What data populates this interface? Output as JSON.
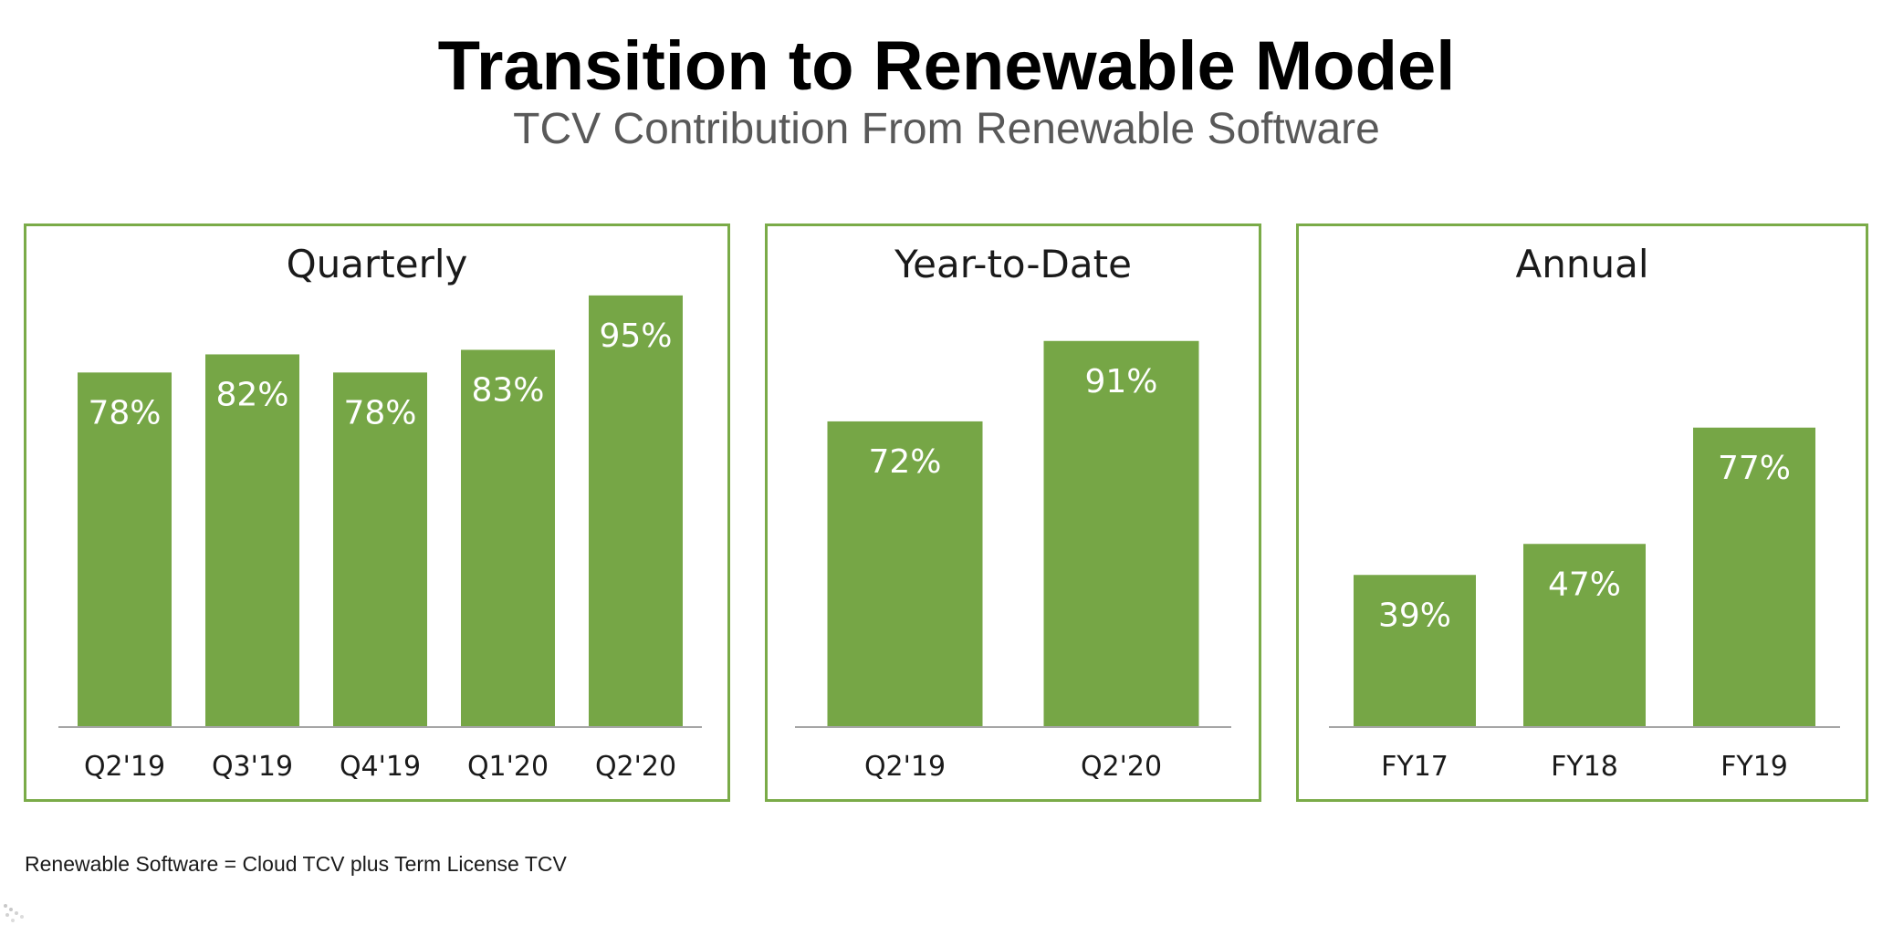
{
  "title": "Transition to Renewable Model",
  "subtitle": "TCV Contribution From Renewable Software",
  "footnote": "Renewable Software = Cloud TCV plus Term License TCV",
  "colors": {
    "bar": "#76a646",
    "border": "#7aab48",
    "axis": "#a6a6a6",
    "label": "#ffffff"
  },
  "chart_data": [
    {
      "type": "bar",
      "title": "Quarterly",
      "categories": [
        "Q2'19",
        "Q3'19",
        "Q4'19",
        "Q1'20",
        "Q2'20"
      ],
      "values": [
        78,
        82,
        78,
        83,
        95
      ],
      "labels": [
        "78%",
        "82%",
        "78%",
        "83%",
        "95%"
      ],
      "ylim": [
        0,
        100
      ],
      "grid": false,
      "legend": "none"
    },
    {
      "type": "bar",
      "title": "Year-to-Date",
      "categories": [
        "Q2'19",
        "Q2'20"
      ],
      "values": [
        72,
        91
      ],
      "labels": [
        "72%",
        "91%"
      ],
      "ylim": [
        0,
        100
      ],
      "grid": false,
      "legend": "none"
    },
    {
      "type": "bar",
      "title": "Annual",
      "categories": [
        "FY17",
        "FY18",
        "FY19"
      ],
      "values": [
        39,
        47,
        77
      ],
      "labels": [
        "39%",
        "47%",
        "77%"
      ],
      "ylim": [
        0,
        100
      ],
      "grid": false,
      "legend": "none"
    }
  ]
}
